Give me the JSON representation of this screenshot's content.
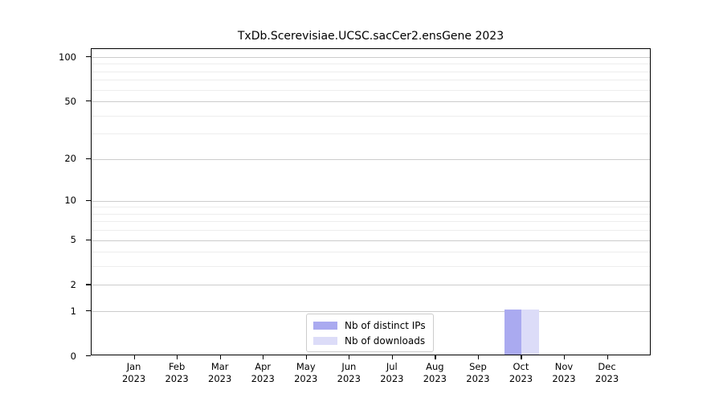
{
  "chart_data": {
    "type": "bar",
    "title": "TxDb.Scerevisiae.UCSC.sacCer2.ensGene 2023",
    "categories": [
      "Jan 2023",
      "Feb 2023",
      "Mar 2023",
      "Apr 2023",
      "May 2023",
      "Jun 2023",
      "Jul 2023",
      "Aug 2023",
      "Sep 2023",
      "Oct 2023",
      "Nov 2023",
      "Dec 2023"
    ],
    "series": [
      {
        "name": "Nb of distinct IPs",
        "color": "#aaaaf0",
        "values": [
          0,
          0,
          0,
          0,
          0,
          0,
          0,
          0,
          0,
          1,
          0,
          0
        ]
      },
      {
        "name": "Nb of downloads",
        "color": "#dcdcf8",
        "values": [
          0,
          0,
          0,
          0,
          0,
          0,
          0,
          0,
          0,
          1,
          0,
          0
        ]
      }
    ],
    "yscale": "log1p",
    "ylim": [
      0,
      100
    ],
    "yticks_major": [
      0,
      1,
      2,
      5,
      10,
      20,
      50,
      100
    ],
    "yticks_minor": [
      3,
      4,
      6,
      7,
      8,
      9,
      30,
      40,
      60,
      70,
      80,
      90
    ],
    "xlabel": "",
    "ylabel": "",
    "grid": "horizontal",
    "legend_position": "bottom-center-inside",
    "grid_major_color": "#cccccc",
    "grid_minor_color": "#ededed"
  }
}
